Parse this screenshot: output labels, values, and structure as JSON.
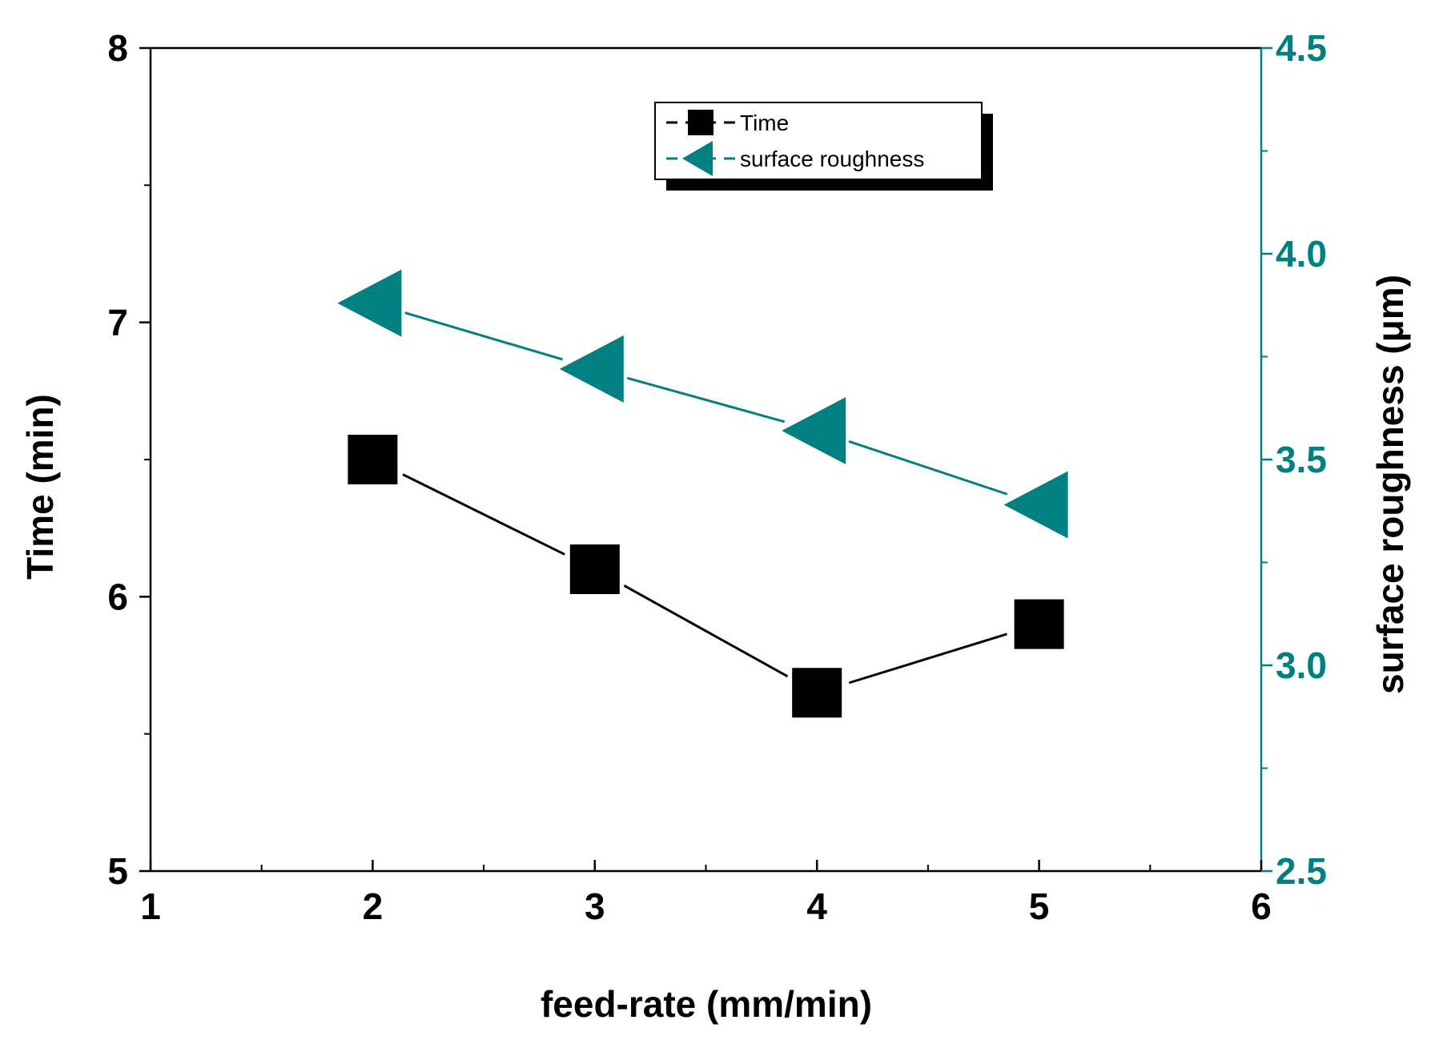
{
  "chart_data": {
    "type": "line",
    "x": [
      2,
      3,
      4,
      5
    ],
    "xlabel": "feed-rate (mm/min)",
    "xlim": [
      1,
      6
    ],
    "x_ticks": [
      "1",
      "2",
      "3",
      "4",
      "5",
      "6"
    ],
    "ylabel_left": "Time (min)",
    "ylim_left": [
      5,
      8
    ],
    "y_left_ticks": [
      "5",
      "6",
      "7",
      "8"
    ],
    "ylabel_right": "surface roughness (μm)",
    "ylim_right": [
      2.5,
      4.5
    ],
    "y_right_ticks": [
      "2.5",
      "3.0",
      "3.5",
      "4.0",
      "4.5"
    ],
    "series": [
      {
        "name": "Time",
        "axis": "left",
        "marker": "square",
        "color": "#000000",
        "values": [
          6.5,
          6.1,
          5.65,
          5.9
        ]
      },
      {
        "name": "surface roughness",
        "axis": "right",
        "marker": "triangle-left",
        "color": "#008080",
        "values": [
          3.88,
          3.72,
          3.57,
          3.39
        ]
      }
    ],
    "legend": {
      "position": "top-center"
    },
    "grid": false
  }
}
